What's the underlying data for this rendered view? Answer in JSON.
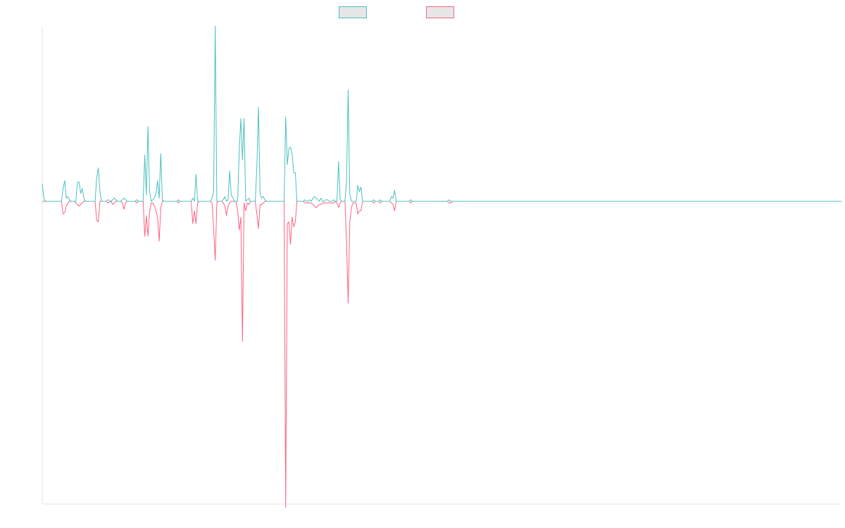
{
  "colors": {
    "series_up": "#4bc0c0",
    "series_down": "#ff6384",
    "legend_fill": "#e6e6e6",
    "axis": "#e6e6e6"
  },
  "chart_data": {
    "type": "line",
    "title": "",
    "xlabel": "",
    "ylabel": "",
    "legend_position": "top",
    "grid": false,
    "x_count": 500,
    "ylim": [
      -190,
      110
    ],
    "series": [
      {
        "color": "#4bc0c0",
        "points": [
          [
            0,
            11
          ],
          [
            1,
            2
          ],
          [
            2,
            0
          ],
          [
            12,
            0
          ],
          [
            13,
            8
          ],
          [
            14,
            13
          ],
          [
            15,
            2
          ],
          [
            16,
            3
          ],
          [
            17,
            1
          ],
          [
            18,
            0
          ],
          [
            21,
            0
          ],
          [
            22,
            12
          ],
          [
            23,
            12
          ],
          [
            24,
            5
          ],
          [
            25,
            8
          ],
          [
            26,
            2
          ],
          [
            27,
            0
          ],
          [
            33,
            0
          ],
          [
            34,
            15
          ],
          [
            35,
            21
          ],
          [
            36,
            6
          ],
          [
            37,
            0
          ],
          [
            40,
            0
          ],
          [
            41,
            1
          ],
          [
            43,
            0
          ],
          [
            44,
            1
          ],
          [
            45,
            2
          ],
          [
            46,
            1
          ],
          [
            47,
            0
          ],
          [
            49,
            0
          ],
          [
            50,
            1
          ],
          [
            51,
            2
          ],
          [
            53,
            0
          ],
          [
            58,
            0
          ],
          [
            59,
            1
          ],
          [
            60,
            0
          ],
          [
            63,
            0
          ],
          [
            64,
            29
          ],
          [
            65,
            4
          ],
          [
            66,
            47
          ],
          [
            67,
            6
          ],
          [
            68,
            0
          ],
          [
            70,
            2
          ],
          [
            71,
            5
          ],
          [
            72,
            13
          ],
          [
            73,
            2
          ],
          [
            74,
            30
          ],
          [
            75,
            1
          ],
          [
            76,
            0
          ],
          [
            84,
            0
          ],
          [
            85,
            1
          ],
          [
            86,
            0
          ],
          [
            93,
            0
          ],
          [
            94,
            2
          ],
          [
            95,
            0
          ],
          [
            96,
            17
          ],
          [
            97,
            0
          ],
          [
            105,
            0
          ],
          [
            106,
            2
          ],
          [
            107,
            6
          ],
          [
            108,
            110
          ],
          [
            109,
            0
          ],
          [
            112,
            0
          ],
          [
            113,
            1
          ],
          [
            114,
            3
          ],
          [
            115,
            0
          ],
          [
            116,
            1
          ],
          [
            117,
            19
          ],
          [
            118,
            4
          ],
          [
            119,
            2
          ],
          [
            120,
            0
          ],
          [
            122,
            0
          ],
          [
            123,
            32
          ],
          [
            124,
            52
          ],
          [
            125,
            26
          ],
          [
            126,
            52
          ],
          [
            127,
            0
          ],
          [
            128,
            1
          ],
          [
            129,
            2
          ],
          [
            130,
            0
          ],
          [
            133,
            0
          ],
          [
            134,
            22
          ],
          [
            135,
            59
          ],
          [
            136,
            5
          ],
          [
            137,
            2
          ],
          [
            138,
            3
          ],
          [
            139,
            1
          ],
          [
            140,
            0
          ],
          [
            151,
            0
          ],
          [
            152,
            53
          ],
          [
            153,
            23
          ],
          [
            154,
            33
          ],
          [
            155,
            34
          ],
          [
            156,
            30
          ],
          [
            157,
            18
          ],
          [
            158,
            18
          ],
          [
            159,
            0
          ],
          [
            163,
            0
          ],
          [
            164,
            1
          ],
          [
            165,
            0
          ],
          [
            166,
            0
          ],
          [
            167,
            1
          ],
          [
            168,
            0
          ],
          [
            169,
            2
          ],
          [
            170,
            3
          ],
          [
            171,
            2
          ],
          [
            172,
            1
          ],
          [
            173,
            0
          ],
          [
            174,
            2
          ],
          [
            175,
            0
          ],
          [
            176,
            0
          ],
          [
            177,
            1
          ],
          [
            178,
            1
          ],
          [
            179,
            0
          ],
          [
            181,
            0
          ],
          [
            182,
            1
          ],
          [
            183,
            0
          ],
          [
            184,
            0
          ],
          [
            185,
            25
          ],
          [
            186,
            1
          ],
          [
            187,
            0
          ],
          [
            189,
            0
          ],
          [
            190,
            13
          ],
          [
            191,
            70
          ],
          [
            192,
            5
          ],
          [
            193,
            0
          ],
          [
            196,
            0
          ],
          [
            197,
            10
          ],
          [
            198,
            6
          ],
          [
            199,
            9
          ],
          [
            200,
            0
          ],
          [
            206,
            0
          ],
          [
            207,
            1
          ],
          [
            208,
            0
          ],
          [
            210,
            0
          ],
          [
            211,
            1
          ],
          [
            212,
            0
          ],
          [
            217,
            0
          ],
          [
            218,
            3
          ],
          [
            219,
            2
          ],
          [
            220,
            7
          ],
          [
            221,
            0
          ],
          [
            229,
            0
          ],
          [
            230,
            1
          ],
          [
            231,
            0
          ],
          [
            240,
            0
          ],
          [
            253,
            0
          ],
          [
            254,
            1
          ],
          [
            255,
            0
          ],
          [
            499,
            0
          ]
        ]
      },
      {
        "color": "#ff6384",
        "points": [
          [
            0,
            0
          ],
          [
            12,
            0
          ],
          [
            13,
            -8
          ],
          [
            14,
            -7
          ],
          [
            15,
            -3
          ],
          [
            16,
            -1
          ],
          [
            17,
            0
          ],
          [
            20,
            0
          ],
          [
            21,
            -1
          ],
          [
            22,
            -2
          ],
          [
            23,
            -3
          ],
          [
            24,
            -2
          ],
          [
            25,
            -1
          ],
          [
            26,
            0
          ],
          [
            33,
            0
          ],
          [
            34,
            -12
          ],
          [
            35,
            -13
          ],
          [
            36,
            0
          ],
          [
            40,
            0
          ],
          [
            41,
            -1
          ],
          [
            43,
            0
          ],
          [
            44,
            -2
          ],
          [
            45,
            -1
          ],
          [
            46,
            0
          ],
          [
            49,
            0
          ],
          [
            50,
            -1
          ],
          [
            51,
            -5
          ],
          [
            52,
            -1
          ],
          [
            53,
            0
          ],
          [
            58,
            0
          ],
          [
            59,
            -1
          ],
          [
            60,
            0
          ],
          [
            63,
            0
          ],
          [
            64,
            -22
          ],
          [
            65,
            -9
          ],
          [
            66,
            -22
          ],
          [
            67,
            -7
          ],
          [
            68,
            -1
          ],
          [
            69,
            -1
          ],
          [
            70,
            -3
          ],
          [
            71,
            -6
          ],
          [
            72,
            -10
          ],
          [
            73,
            -25
          ],
          [
            74,
            -4
          ],
          [
            75,
            0
          ],
          [
            84,
            0
          ],
          [
            85,
            -1
          ],
          [
            86,
            0
          ],
          [
            93,
            0
          ],
          [
            94,
            -14
          ],
          [
            95,
            -6
          ],
          [
            96,
            -14
          ],
          [
            97,
            -1
          ],
          [
            98,
            0
          ],
          [
            105,
            0
          ],
          [
            106,
            -1
          ],
          [
            107,
            -17
          ],
          [
            108,
            -37
          ],
          [
            109,
            -1
          ],
          [
            110,
            0
          ],
          [
            112,
            0
          ],
          [
            113,
            -1
          ],
          [
            114,
            -3
          ],
          [
            115,
            -9
          ],
          [
            116,
            -3
          ],
          [
            117,
            -1
          ],
          [
            118,
            0
          ],
          [
            121,
            0
          ],
          [
            122,
            -6
          ],
          [
            123,
            -18
          ],
          [
            124,
            -10
          ],
          [
            125,
            -88
          ],
          [
            126,
            -1
          ],
          [
            127,
            -6
          ],
          [
            128,
            -1
          ],
          [
            129,
            -2
          ],
          [
            130,
            0
          ],
          [
            133,
            0
          ],
          [
            134,
            -8
          ],
          [
            135,
            -17
          ],
          [
            136,
            -2
          ],
          [
            137,
            -2
          ],
          [
            138,
            -1
          ],
          [
            139,
            0
          ],
          [
            151,
            0
          ],
          [
            152,
            -192
          ],
          [
            153,
            -14
          ],
          [
            154,
            -13
          ],
          [
            155,
            -27
          ],
          [
            156,
            -10
          ],
          [
            157,
            -16
          ],
          [
            158,
            -13
          ],
          [
            159,
            0
          ],
          [
            163,
            0
          ],
          [
            164,
            -1
          ],
          [
            165,
            -1
          ],
          [
            166,
            -1
          ],
          [
            167,
            -1
          ],
          [
            168,
            -1
          ],
          [
            169,
            -2
          ],
          [
            170,
            -3
          ],
          [
            171,
            -4
          ],
          [
            172,
            -3
          ],
          [
            173,
            -2
          ],
          [
            174,
            -2
          ],
          [
            175,
            -1
          ],
          [
            176,
            -1
          ],
          [
            177,
            -1
          ],
          [
            178,
            -1
          ],
          [
            179,
            -1
          ],
          [
            180,
            -1
          ],
          [
            181,
            -1
          ],
          [
            182,
            -1
          ],
          [
            183,
            0
          ],
          [
            184,
            -1
          ],
          [
            185,
            -4
          ],
          [
            186,
            -1
          ],
          [
            187,
            0
          ],
          [
            189,
            0
          ],
          [
            190,
            -26
          ],
          [
            191,
            -64
          ],
          [
            192,
            -13
          ],
          [
            193,
            -4
          ],
          [
            194,
            -1
          ],
          [
            195,
            -1
          ],
          [
            196,
            -1
          ],
          [
            197,
            -8
          ],
          [
            198,
            -6
          ],
          [
            199,
            -6
          ],
          [
            200,
            0
          ],
          [
            206,
            0
          ],
          [
            207,
            -1
          ],
          [
            208,
            0
          ],
          [
            210,
            0
          ],
          [
            211,
            -1
          ],
          [
            212,
            0
          ],
          [
            217,
            0
          ],
          [
            218,
            -1
          ],
          [
            219,
            -2
          ],
          [
            220,
            -6
          ],
          [
            221,
            0
          ],
          [
            229,
            0
          ],
          [
            230,
            -1
          ],
          [
            231,
            0
          ],
          [
            240,
            0
          ],
          [
            253,
            0
          ],
          [
            254,
            -1
          ],
          [
            255,
            -1
          ],
          [
            256,
            0
          ],
          [
            499,
            0
          ]
        ]
      }
    ]
  }
}
